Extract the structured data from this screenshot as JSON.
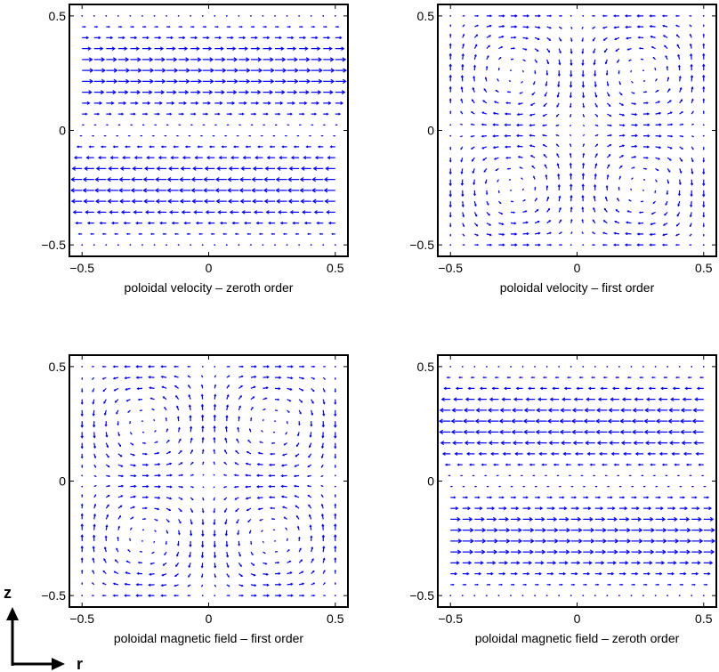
{
  "chart_data": [
    {
      "type": "quiver",
      "field": "uniform-shear",
      "sign": 1,
      "xlabel": "poloidal velocity – zeroth order",
      "xlim": [
        -0.55,
        0.55
      ],
      "ylim": [
        -0.55,
        0.55
      ],
      "xticks": [
        "−0.5",
        "0",
        "0.5"
      ],
      "yticks": [
        "−0.5",
        "0",
        "0.5"
      ],
      "grid": false,
      "color": "#0000ff"
    },
    {
      "type": "quiver",
      "field": "vortex-cells",
      "sign": 1,
      "xlabel": "poloidal velocity – first order",
      "xlim": [
        -0.55,
        0.55
      ],
      "ylim": [
        -0.55,
        0.55
      ],
      "xticks": [
        "−0.5",
        "0",
        "0.5"
      ],
      "yticks": [
        "−0.5",
        "0",
        "0.5"
      ],
      "grid": false,
      "color": "#0000ff"
    },
    {
      "type": "quiver",
      "field": "vortex-cells",
      "sign": -1,
      "xlabel": "poloidal magnetic field – first order",
      "xlim": [
        -0.55,
        0.55
      ],
      "ylim": [
        -0.55,
        0.55
      ],
      "xticks": [
        "−0.5",
        "0",
        "0.5"
      ],
      "yticks": [
        "−0.5",
        "0",
        "0.5"
      ],
      "grid": false,
      "color": "#0000ff"
    },
    {
      "type": "quiver",
      "field": "uniform-shear",
      "sign": -1,
      "xlabel": "poloidal magnetic field – zeroth order",
      "xlim": [
        -0.55,
        0.55
      ],
      "ylim": [
        -0.55,
        0.55
      ],
      "xticks": [
        "−0.5",
        "0",
        "0.5"
      ],
      "yticks": [
        "−0.5",
        "0",
        "0.5"
      ],
      "grid": false,
      "color": "#0000ff"
    }
  ],
  "coordinate_axes": {
    "vertical": "z",
    "horizontal": "r"
  }
}
